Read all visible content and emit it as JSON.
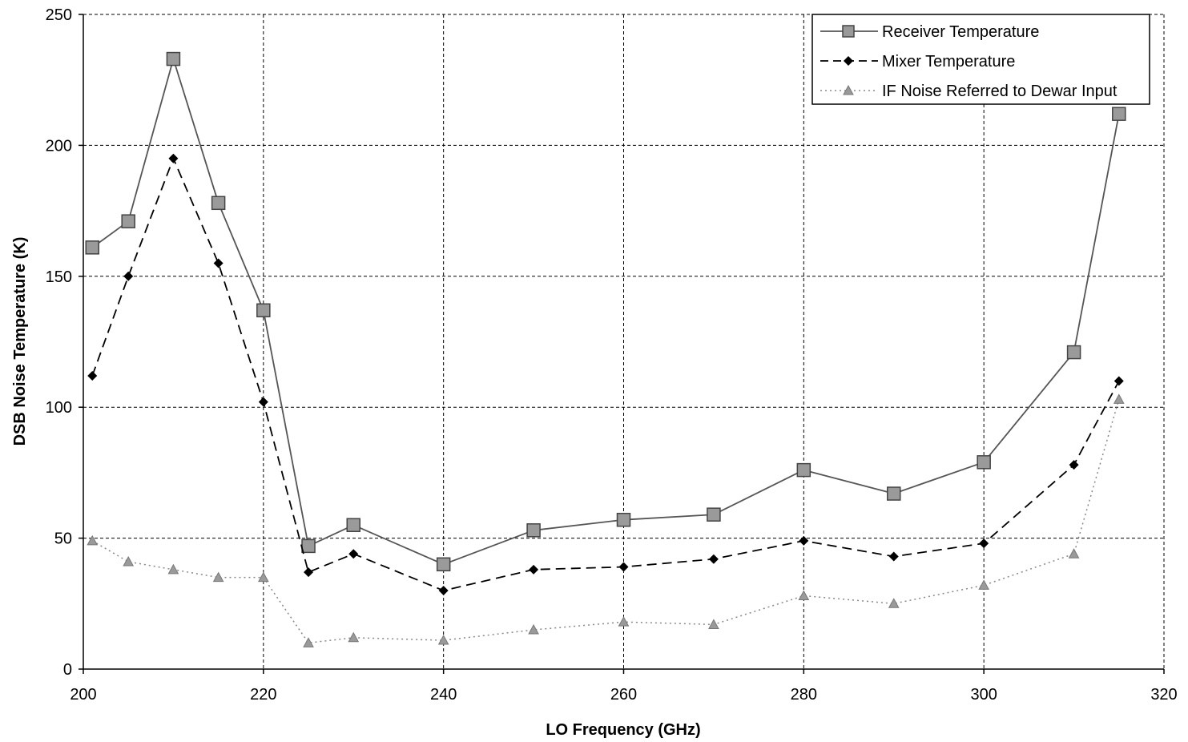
{
  "chart_data": {
    "type": "line",
    "title": "",
    "xlabel": "LO Frequency (GHz)",
    "ylabel": "DSB Noise Temperature  (K)",
    "xlim": [
      200,
      320
    ],
    "ylim": [
      0,
      250
    ],
    "x_ticks": [
      200,
      220,
      240,
      260,
      280,
      300,
      320
    ],
    "y_ticks": [
      0,
      50,
      100,
      150,
      200,
      250
    ],
    "grid": true,
    "legend_position": "top-right",
    "series": [
      {
        "name": "Receiver Temperature",
        "color": "#555555",
        "marker": "square",
        "line": "solid",
        "x": [
          201,
          205,
          210,
          215,
          220,
          225,
          230,
          240,
          250,
          260,
          270,
          280,
          290,
          300,
          310,
          315
        ],
        "y": [
          161,
          171,
          233,
          178,
          137,
          47,
          55,
          40,
          53,
          57,
          59,
          76,
          67,
          79,
          121,
          212
        ]
      },
      {
        "name": "Mixer Temperature",
        "color": "#000000",
        "marker": "diamond",
        "line": "dashed",
        "x": [
          201,
          205,
          210,
          215,
          220,
          225,
          230,
          240,
          250,
          260,
          270,
          280,
          290,
          300,
          310,
          315
        ],
        "y": [
          112,
          150,
          195,
          155,
          102,
          37,
          44,
          30,
          38,
          39,
          42,
          49,
          43,
          48,
          78,
          110
        ]
      },
      {
        "name": "IF Noise Referred to Dewar Input",
        "color": "#888888",
        "marker": "triangle",
        "line": "dotted",
        "x": [
          201,
          205,
          210,
          215,
          220,
          225,
          230,
          240,
          250,
          260,
          270,
          280,
          290,
          300,
          310,
          315
        ],
        "y": [
          49,
          41,
          38,
          35,
          35,
          10,
          12,
          11,
          15,
          18,
          17,
          28,
          25,
          32,
          44,
          103
        ]
      }
    ]
  }
}
